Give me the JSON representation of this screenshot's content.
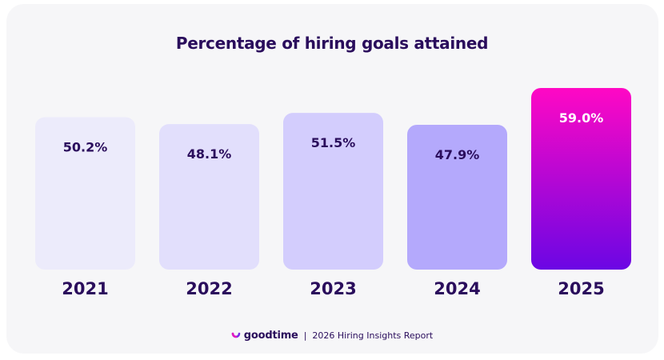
{
  "colors": {
    "background": "#f6f6f8",
    "text": "#2a0d5c",
    "bar_fills": [
      "#ecebfb",
      "#e2dffc",
      "#d3cdfd",
      "#b4a9fc"
    ],
    "highlight_gradient_top": "#ff08c4",
    "highlight_gradient_bottom": "#6b06e4"
  },
  "footer": {
    "brand": "goodtime",
    "brand_icon": "goodtime-logo-icon",
    "separator": "|",
    "report": "2026 Hiring Insights Report"
  },
  "chart_data": {
    "type": "bar",
    "title": "Percentage of hiring goals attained",
    "xlabel": "",
    "ylabel": "",
    "categories": [
      "2021",
      "2022",
      "2023",
      "2024",
      "2025"
    ],
    "values": [
      50.2,
      48.1,
      51.5,
      47.9,
      59.0
    ],
    "value_labels": [
      "50.2%",
      "48.1%",
      "51.5%",
      "47.9%",
      "59.0%"
    ],
    "highlight_index": 4,
    "grid": false,
    "legend": "none"
  }
}
